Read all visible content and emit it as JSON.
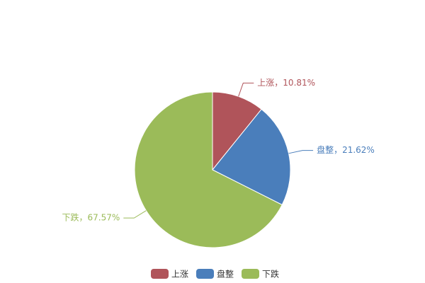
{
  "chart_data": {
    "type": "pie",
    "categories": [
      "上涨",
      "盘整",
      "下跌"
    ],
    "values": [
      10.81,
      21.62,
      67.57
    ],
    "value_labels": [
      "上涨，10.81%",
      "盘整，21.62%",
      "下跌，67.57%"
    ],
    "colors": [
      "#b0545a",
      "#4a7ebb",
      "#9bbb59"
    ],
    "legend": "bottom"
  }
}
